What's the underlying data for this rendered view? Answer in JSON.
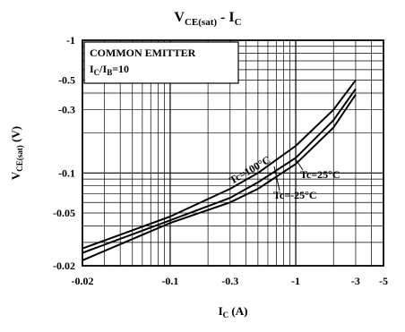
{
  "chart_data": {
    "type": "line",
    "title": {
      "main": "V",
      "main_sub": "CE(sat)",
      "sep": "  - I",
      "sep_sub": "C"
    },
    "xlabel": {
      "main": "I",
      "sub": "C",
      "unit": " (A)"
    },
    "ylabel": {
      "main": "V",
      "sub": "CE(sat)",
      "unit": " (V)"
    },
    "x_scale": "log",
    "y_scale": "log",
    "x_direction": "negative-magnitude",
    "y_direction": "negative-magnitude",
    "xlim": [
      -0.02,
      -5
    ],
    "ylim": [
      -0.02,
      -1
    ],
    "x_ticks": [
      {
        "value": -0.02,
        "label": "-0.02"
      },
      {
        "value": -0.1,
        "label": "-0.1"
      },
      {
        "value": -0.3,
        "label": "-0.3"
      },
      {
        "value": -1,
        "label": "-1"
      },
      {
        "value": -3,
        "label": "-3"
      },
      {
        "value": -5,
        "label": "-5"
      }
    ],
    "y_ticks": [
      {
        "value": -1,
        "label": "-1"
      },
      {
        "value": -0.5,
        "label": "-0.5"
      },
      {
        "value": -0.3,
        "label": "-0.3"
      },
      {
        "value": -0.1,
        "label": "-0.1"
      },
      {
        "value": -0.05,
        "label": "-0.05"
      },
      {
        "value": -0.02,
        "label": "-0.02"
      }
    ],
    "grid": true,
    "legend_box": {
      "line1": "COMMON EMITTER",
      "line2": {
        "a": "I",
        "a_sub": "C",
        "b": "/I",
        "b_sub": "B",
        "c": "=10"
      }
    },
    "series": [
      {
        "name": "Tc=100°C",
        "x": [
          -0.02,
          -0.1,
          -0.3,
          -0.5,
          -1,
          -2,
          -3
        ],
        "y": [
          -0.027,
          -0.047,
          -0.076,
          -0.1,
          -0.16,
          -0.3,
          -0.5
        ]
      },
      {
        "name": "Tc=25°C",
        "x": [
          -0.02,
          -0.1,
          -0.3,
          -0.5,
          -1,
          -2,
          -3
        ],
        "y": [
          -0.025,
          -0.044,
          -0.065,
          -0.085,
          -0.13,
          -0.25,
          -0.43
        ]
      },
      {
        "name": "Tc=-25°C",
        "x": [
          -0.02,
          -0.1,
          -0.3,
          -0.5,
          -1,
          -2,
          -3
        ],
        "y": [
          -0.022,
          -0.042,
          -0.06,
          -0.076,
          -0.117,
          -0.22,
          -0.39
        ]
      }
    ]
  }
}
